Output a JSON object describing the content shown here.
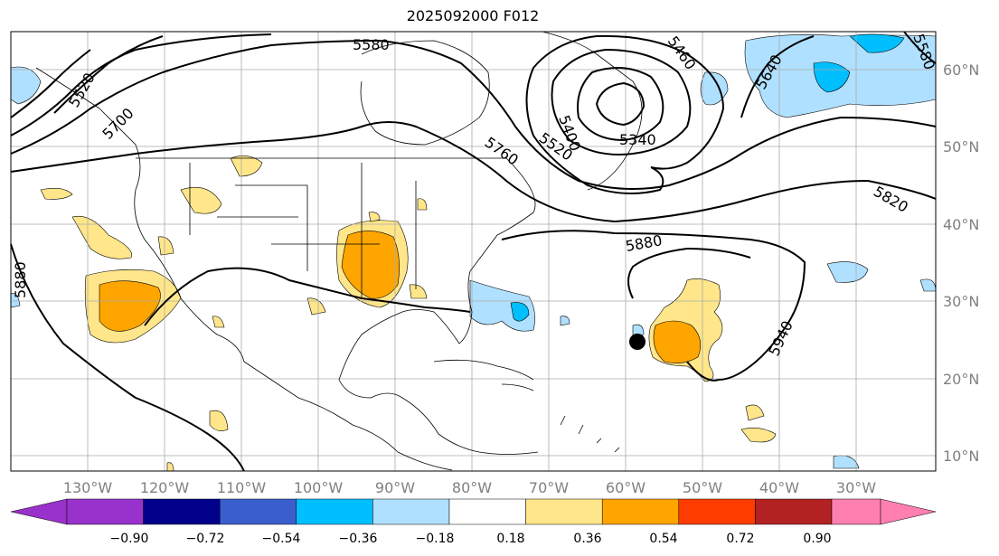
{
  "map": {
    "title": "2025092000 F012",
    "lon_labels": [
      "130°W",
      "120°W",
      "110°W",
      "100°W",
      "90°W",
      "80°W",
      "70°W",
      "60°W",
      "50°W",
      "40°W",
      "30°W"
    ],
    "lat_labels": [
      "60°N",
      "50°N",
      "40°N",
      "30°N",
      "20°N",
      "10°N"
    ],
    "contour_labels": [
      "5580",
      "5520",
      "5700",
      "5760",
      "5400",
      "5520",
      "5340",
      "5460",
      "5640",
      "5580",
      "5820",
      "5880",
      "5880",
      "5940"
    ],
    "marker": "storm-center-dot"
  },
  "colorbar": {
    "ticks": [
      "−0.90",
      "−0.72",
      "−0.54",
      "−0.36",
      "−0.18",
      "0.18",
      "0.36",
      "0.54",
      "0.72",
      "0.90"
    ],
    "colors": [
      "#9932cc",
      "#00008b",
      "#3a5fcd",
      "#00bfff",
      "#b0e0ff",
      "#ffffff",
      "#ffe68a",
      "#ffa500",
      "#ff3c00",
      "#b22222",
      "#ff80b0"
    ]
  }
}
